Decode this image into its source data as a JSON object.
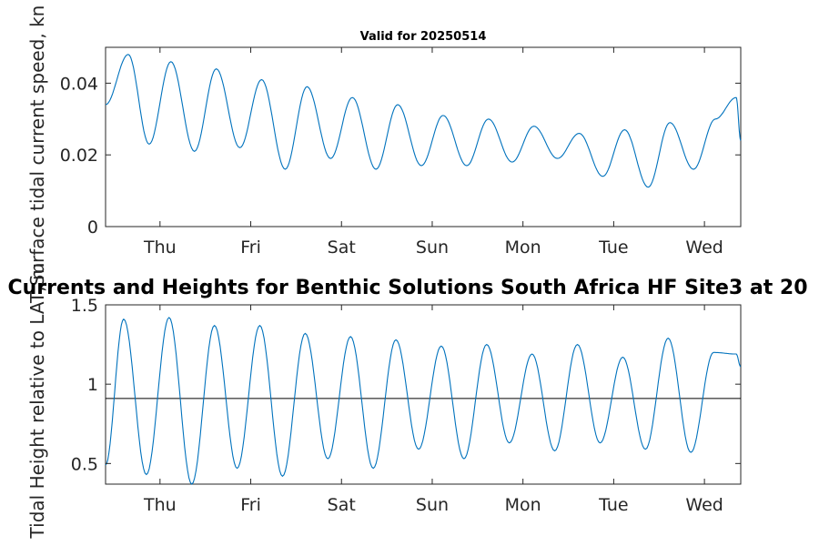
{
  "chart_data": [
    {
      "type": "line",
      "title": "Valid for 20250514",
      "xlabel": "",
      "ylabel": "Surface tidal current speed, kn",
      "x_tick_labels": [
        "Thu",
        "Fri",
        "Sat",
        "Sun",
        "Mon",
        "Tue",
        "Wed"
      ],
      "y_ticks": [
        0,
        0.02,
        0.04
      ],
      "y_tick_labels": [
        "0",
        "0.02",
        "0.04"
      ],
      "ylim": [
        0,
        0.05
      ],
      "xlim_days": [
        14.4,
        21.4
      ],
      "grid": false,
      "color": "#0072bd",
      "series": [
        {
          "x": [
            14.4,
            14.65,
            14.88,
            15.12,
            15.38,
            15.62,
            15.88,
            16.12,
            16.38,
            16.62,
            16.88,
            17.12,
            17.38,
            17.62,
            17.88,
            18.12,
            18.38,
            18.62,
            18.88,
            19.12,
            19.38,
            19.62,
            19.88,
            20.12,
            20.38,
            20.62,
            20.88,
            21.12,
            21.35,
            21.4
          ],
          "values": [
            0.034,
            0.048,
            0.023,
            0.046,
            0.021,
            0.044,
            0.022,
            0.041,
            0.016,
            0.039,
            0.019,
            0.036,
            0.016,
            0.034,
            0.017,
            0.031,
            0.017,
            0.03,
            0.018,
            0.028,
            0.019,
            0.026,
            0.014,
            0.027,
            0.011,
            0.029,
            0.016,
            0.03,
            0.036,
            0.024
          ]
        }
      ]
    },
    {
      "type": "line",
      "title": "Currents and Heights for Benthic Solutions South Africa HF Site3 at 20",
      "xlabel": "",
      "ylabel": "Tidal Height relative to LAT, m",
      "x_tick_labels": [
        "Thu",
        "Fri",
        "Sat",
        "Sun",
        "Mon",
        "Tue",
        "Wed"
      ],
      "y_ticks": [
        0.5,
        1,
        1.5
      ],
      "y_tick_labels": [
        "0.5",
        "1",
        "1.5"
      ],
      "ylim": [
        0.37,
        1.5
      ],
      "xlim_days": [
        14.4,
        21.4
      ],
      "reference_line": 0.91,
      "grid": false,
      "color": "#0072bd",
      "series": [
        {
          "x": [
            14.4,
            14.6,
            14.85,
            15.1,
            15.35,
            15.6,
            15.85,
            16.1,
            16.35,
            16.6,
            16.85,
            17.1,
            17.35,
            17.6,
            17.85,
            18.1,
            18.35,
            18.6,
            18.85,
            19.1,
            19.35,
            19.6,
            19.85,
            20.1,
            20.35,
            20.6,
            20.85,
            21.1,
            21.35,
            21.4
          ],
          "values": [
            0.49,
            1.41,
            0.43,
            1.42,
            0.37,
            1.37,
            0.47,
            1.37,
            0.42,
            1.32,
            0.53,
            1.3,
            0.47,
            1.28,
            0.59,
            1.24,
            0.53,
            1.25,
            0.63,
            1.19,
            0.58,
            1.25,
            0.63,
            1.17,
            0.59,
            1.29,
            0.57,
            1.2,
            1.19,
            1.11
          ]
        }
      ]
    }
  ]
}
